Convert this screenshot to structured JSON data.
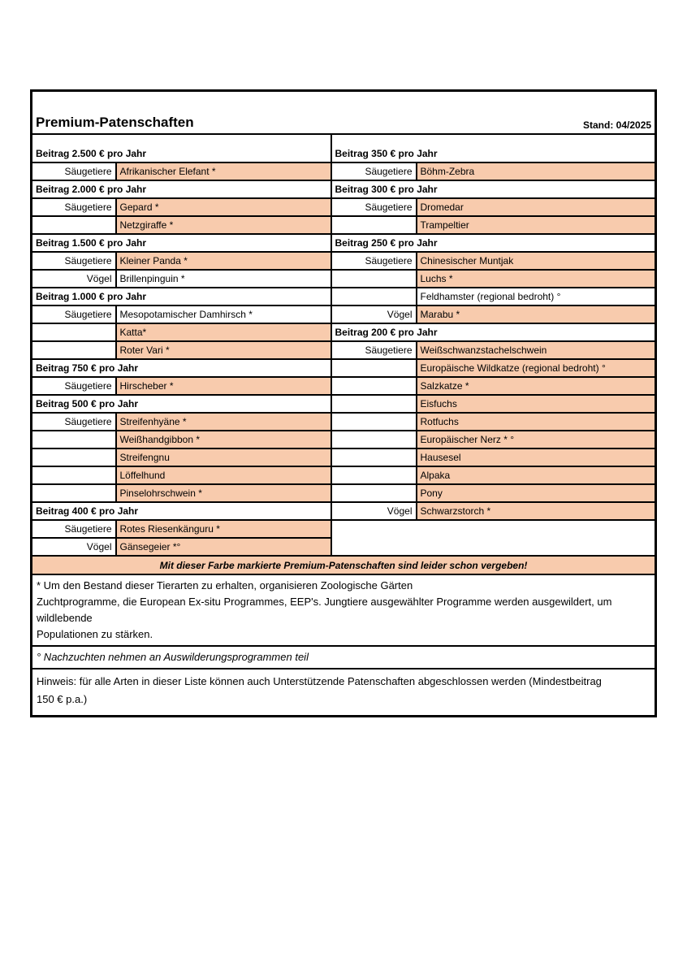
{
  "header": {
    "title": "Premium-Patenschaften",
    "stand": "Stand: 04/2025"
  },
  "colors": {
    "taken_highlight": "#F8CBAD",
    "border": "#000000",
    "page_background": "#FFFFFF"
  },
  "rows": [
    {
      "left": {
        "type": "header",
        "text": "Beitrag 2.500 € pro Jahr"
      },
      "right": {
        "type": "header",
        "text": "Beitrag 350 € pro Jahr"
      }
    },
    {
      "left": {
        "type": "animal",
        "label": "Säugetiere",
        "name": "Afrikanischer Elefant *",
        "taken": true
      },
      "right": {
        "type": "animal",
        "label": "Säugetiere",
        "name": "Böhm-Zebra",
        "taken": true
      }
    },
    {
      "left": {
        "type": "header",
        "text": "Beitrag 2.000 € pro Jahr"
      },
      "right": {
        "type": "header",
        "text": "Beitrag 300 € pro Jahr"
      }
    },
    {
      "left": {
        "type": "animal",
        "label": "Säugetiere",
        "name": "Gepard *",
        "taken": true
      },
      "right": {
        "type": "animal",
        "label": "Säugetiere",
        "name": "Dromedar",
        "taken": true
      }
    },
    {
      "left": {
        "type": "animal",
        "label": "",
        "name": "Netzgiraffe *",
        "taken": true
      },
      "right": {
        "type": "animal",
        "label": "",
        "name": "Trampeltier",
        "taken": true
      }
    },
    {
      "left": {
        "type": "header",
        "text": "Beitrag 1.500 € pro Jahr"
      },
      "right": {
        "type": "header",
        "text": "Beitrag 250 € pro Jahr"
      }
    },
    {
      "left": {
        "type": "animal",
        "label": "Säugetiere",
        "name": "Kleiner Panda *",
        "taken": true
      },
      "right": {
        "type": "animal",
        "label": "Säugetiere",
        "name": "Chinesischer Muntjak",
        "taken": true
      }
    },
    {
      "left": {
        "type": "animal",
        "label": "Vögel",
        "name": "Brillenpinguin *",
        "taken": false
      },
      "right": {
        "type": "animal",
        "label": "",
        "name": "Luchs *",
        "taken": true
      }
    },
    {
      "left": {
        "type": "header",
        "text": "Beitrag 1.000 € pro Jahr"
      },
      "right": {
        "type": "animal",
        "label": "",
        "name": "Feldhamster (regional bedroht) °",
        "taken": false
      }
    },
    {
      "left": {
        "type": "animal",
        "label": "Säugetiere",
        "name": "Mesopotamischer Damhirsch *",
        "taken": false
      },
      "right": {
        "type": "animal",
        "label": "Vögel",
        "name": "Marabu *",
        "taken": true
      }
    },
    {
      "left": {
        "type": "animal",
        "label": "",
        "name": "Katta*",
        "taken": true
      },
      "right": {
        "type": "header",
        "text": "Beitrag 200 € pro Jahr"
      }
    },
    {
      "left": {
        "type": "animal",
        "label": "",
        "name": "Roter Vari *",
        "taken": true
      },
      "right": {
        "type": "animal",
        "label": "Säugetiere",
        "name": "Weißschwanzstachelschwein",
        "taken": true
      }
    },
    {
      "left": {
        "type": "header",
        "text": "Beitrag 750 € pro Jahr"
      },
      "right": {
        "type": "animal",
        "label": "",
        "name": "Europäische Wildkatze (regional bedroht) °",
        "taken": true
      }
    },
    {
      "left": {
        "type": "animal",
        "label": "Säugetiere",
        "name": "Hirscheber *",
        "taken": true
      },
      "right": {
        "type": "animal",
        "label": "",
        "name": "Salzkatze *",
        "taken": true
      }
    },
    {
      "left": {
        "type": "header",
        "text": "Beitrag 500 € pro Jahr"
      },
      "right": {
        "type": "animal",
        "label": "",
        "name": "Eisfuchs",
        "taken": true
      }
    },
    {
      "left": {
        "type": "animal",
        "label": "Säugetiere",
        "name": "Streifenhyäne *",
        "taken": true
      },
      "right": {
        "type": "animal",
        "label": "",
        "name": "Rotfuchs",
        "taken": true
      }
    },
    {
      "left": {
        "type": "animal",
        "label": "",
        "name": "Weißhandgibbon *",
        "taken": true
      },
      "right": {
        "type": "animal",
        "label": "",
        "name": "Europäischer Nerz * °",
        "taken": true
      }
    },
    {
      "left": {
        "type": "animal",
        "label": "",
        "name": "Streifengnu",
        "taken": true
      },
      "right": {
        "type": "animal",
        "label": "",
        "name": "Hausesel",
        "taken": true
      }
    },
    {
      "left": {
        "type": "animal",
        "label": "",
        "name": "Löffelhund",
        "taken": true
      },
      "right": {
        "type": "animal",
        "label": "",
        "name": "Alpaka",
        "taken": true
      }
    },
    {
      "left": {
        "type": "animal",
        "label": "",
        "name": "Pinselohrschwein *",
        "taken": true
      },
      "right": {
        "type": "animal",
        "label": "",
        "name": "Pony",
        "taken": true
      }
    },
    {
      "left": {
        "type": "header",
        "text": "Beitrag 400 € pro Jahr"
      },
      "right": {
        "type": "animal",
        "label": "Vögel",
        "name": "Schwarzstorch *",
        "taken": true
      }
    },
    {
      "left": {
        "type": "animal",
        "label": "Säugetiere",
        "name": "Rotes Riesenkänguru *",
        "taken": true
      },
      "right": {
        "type": "blank",
        "rowspan": 2
      }
    },
    {
      "left": {
        "type": "animal",
        "label": "Vögel",
        "name": "Gänsegeier *°",
        "taken": true
      },
      "right": {
        "type": "skip"
      }
    }
  ],
  "legend": {
    "banner": "Mit dieser Farbe markierte Premium-Patenschaften sind leider schon vergeben!"
  },
  "footnotes": {
    "asterisk_lines": [
      "*  Um den Bestand dieser Tierarten zu erhalten, organisieren Zoologische Gärten",
      "Zuchtprogramme, die European Ex-situ Programmes, EEP's. Jungtiere ausgewählter Programme werden ausgewildert, um wildlebende",
      "Populationen zu stärken."
    ],
    "degree_note": "° Nachzuchten nehmen an Auswilderungsprogrammen teil",
    "hinweis_lines": [
      "Hinweis: für alle Arten in dieser Liste können auch Unterstützende Patenschaften abgeschlossen werden (Mindestbeitrag",
      "150 € p.a.)"
    ]
  }
}
